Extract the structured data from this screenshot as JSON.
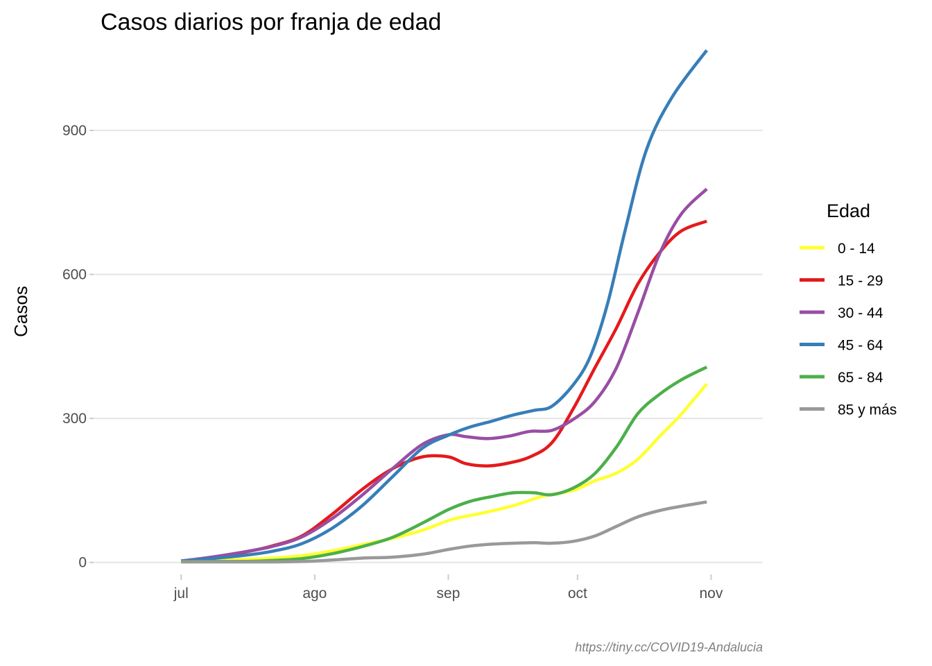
{
  "chart_data": {
    "type": "line",
    "title": "Casos diarios por franja de edad",
    "xlabel": "",
    "ylabel": "Casos",
    "caption": "https://tiny.cc/COVID19-Andalucia",
    "x_axis": {
      "type": "date",
      "domain": [
        "2020-06-11",
        "2020-11-13"
      ],
      "ticks": [
        {
          "date": "2020-07-01",
          "label": "jul"
        },
        {
          "date": "2020-08-01",
          "label": "ago"
        },
        {
          "date": "2020-09-01",
          "label": "sep"
        },
        {
          "date": "2020-10-01",
          "label": "oct"
        },
        {
          "date": "2020-11-01",
          "label": "nov"
        }
      ]
    },
    "y_axis": {
      "ylim": [
        -25,
        1085
      ],
      "ticks": [
        0,
        300,
        600,
        900
      ]
    },
    "grid": "horizontal",
    "legend": {
      "title": "Edad",
      "position": "right"
    },
    "series": [
      {
        "name": "0 - 14",
        "color": "#FFFF33",
        "points": [
          [
            "2020-07-01",
            2
          ],
          [
            "2020-07-08",
            4
          ],
          [
            "2020-07-15",
            6
          ],
          [
            "2020-07-22",
            9
          ],
          [
            "2020-07-29",
            14
          ],
          [
            "2020-08-05",
            24
          ],
          [
            "2020-08-12",
            37
          ],
          [
            "2020-08-19",
            50
          ],
          [
            "2020-08-26",
            67
          ],
          [
            "2020-09-02",
            90
          ],
          [
            "2020-09-09",
            103
          ],
          [
            "2020-09-16",
            118
          ],
          [
            "2020-09-23",
            138
          ],
          [
            "2020-09-30",
            150
          ],
          [
            "2020-10-05",
            170
          ],
          [
            "2020-10-10",
            186
          ],
          [
            "2020-10-15",
            215
          ],
          [
            "2020-10-20",
            262
          ],
          [
            "2020-10-25",
            308
          ],
          [
            "2020-10-31",
            372
          ]
        ]
      },
      {
        "name": "15 - 29",
        "color": "#E41A1C",
        "points": [
          [
            "2020-07-01",
            3
          ],
          [
            "2020-07-08",
            10
          ],
          [
            "2020-07-15",
            20
          ],
          [
            "2020-07-22",
            34
          ],
          [
            "2020-07-29",
            55
          ],
          [
            "2020-08-05",
            100
          ],
          [
            "2020-08-12",
            152
          ],
          [
            "2020-08-19",
            195
          ],
          [
            "2020-08-26",
            220
          ],
          [
            "2020-09-01",
            220
          ],
          [
            "2020-09-05",
            206
          ],
          [
            "2020-09-10",
            201
          ],
          [
            "2020-09-15",
            207
          ],
          [
            "2020-09-20",
            220
          ],
          [
            "2020-09-25",
            249
          ],
          [
            "2020-09-30",
            320
          ],
          [
            "2020-10-05",
            405
          ],
          [
            "2020-10-10",
            488
          ],
          [
            "2020-10-15",
            580
          ],
          [
            "2020-10-20",
            645
          ],
          [
            "2020-10-25",
            690
          ],
          [
            "2020-10-31",
            711
          ]
        ]
      },
      {
        "name": "30 - 44",
        "color": "#984EA3",
        "points": [
          [
            "2020-07-01",
            3
          ],
          [
            "2020-07-08",
            11
          ],
          [
            "2020-07-15",
            21
          ],
          [
            "2020-07-22",
            33
          ],
          [
            "2020-07-29",
            53
          ],
          [
            "2020-08-05",
            91
          ],
          [
            "2020-08-12",
            140
          ],
          [
            "2020-08-19",
            195
          ],
          [
            "2020-08-26",
            246
          ],
          [
            "2020-09-01",
            266
          ],
          [
            "2020-09-05",
            262
          ],
          [
            "2020-09-10",
            258
          ],
          [
            "2020-09-15",
            263
          ],
          [
            "2020-09-20",
            273
          ],
          [
            "2020-09-25",
            275
          ],
          [
            "2020-09-30",
            298
          ],
          [
            "2020-10-05",
            335
          ],
          [
            "2020-10-10",
            405
          ],
          [
            "2020-10-15",
            520
          ],
          [
            "2020-10-20",
            642
          ],
          [
            "2020-10-25",
            725
          ],
          [
            "2020-10-31",
            778
          ]
        ]
      },
      {
        "name": "45 - 64",
        "color": "#377EB8",
        "points": [
          [
            "2020-07-01",
            3
          ],
          [
            "2020-07-08",
            8
          ],
          [
            "2020-07-15",
            14
          ],
          [
            "2020-07-22",
            23
          ],
          [
            "2020-07-29",
            39
          ],
          [
            "2020-08-05",
            71
          ],
          [
            "2020-08-12",
            118
          ],
          [
            "2020-08-19",
            178
          ],
          [
            "2020-08-26",
            238
          ],
          [
            "2020-09-01",
            265
          ],
          [
            "2020-09-06",
            282
          ],
          [
            "2020-09-11",
            294
          ],
          [
            "2020-09-16",
            307
          ],
          [
            "2020-09-21",
            317
          ],
          [
            "2020-09-25",
            325
          ],
          [
            "2020-09-30",
            370
          ],
          [
            "2020-10-04",
            430
          ],
          [
            "2020-10-08",
            540
          ],
          [
            "2020-10-12",
            690
          ],
          [
            "2020-10-17",
            860
          ],
          [
            "2020-10-23",
            970
          ],
          [
            "2020-10-31",
            1067
          ]
        ]
      },
      {
        "name": "65 - 84",
        "color": "#4DAF4A",
        "points": [
          [
            "2020-07-01",
            2
          ],
          [
            "2020-07-08",
            2
          ],
          [
            "2020-07-15",
            2
          ],
          [
            "2020-07-22",
            4
          ],
          [
            "2020-07-29",
            8
          ],
          [
            "2020-08-05",
            18
          ],
          [
            "2020-08-12",
            33
          ],
          [
            "2020-08-19",
            52
          ],
          [
            "2020-08-26",
            82
          ],
          [
            "2020-09-01",
            110
          ],
          [
            "2020-09-06",
            127
          ],
          [
            "2020-09-11",
            137
          ],
          [
            "2020-09-16",
            145
          ],
          [
            "2020-09-21",
            145
          ],
          [
            "2020-09-25",
            141
          ],
          [
            "2020-09-30",
            155
          ],
          [
            "2020-10-05",
            185
          ],
          [
            "2020-10-10",
            240
          ],
          [
            "2020-10-15",
            310
          ],
          [
            "2020-10-20",
            350
          ],
          [
            "2020-10-25",
            380
          ],
          [
            "2020-10-31",
            407
          ]
        ]
      },
      {
        "name": "85 y más",
        "color": "#999999",
        "points": [
          [
            "2020-07-01",
            1
          ],
          [
            "2020-07-08",
            1
          ],
          [
            "2020-07-15",
            1
          ],
          [
            "2020-07-22",
            1
          ],
          [
            "2020-07-29",
            2
          ],
          [
            "2020-08-05",
            5
          ],
          [
            "2020-08-12",
            9
          ],
          [
            "2020-08-19",
            11
          ],
          [
            "2020-08-26",
            17
          ],
          [
            "2020-09-01",
            27
          ],
          [
            "2020-09-06",
            34
          ],
          [
            "2020-09-11",
            38
          ],
          [
            "2020-09-16",
            40
          ],
          [
            "2020-09-21",
            41
          ],
          [
            "2020-09-25",
            40
          ],
          [
            "2020-09-30",
            44
          ],
          [
            "2020-10-05",
            55
          ],
          [
            "2020-10-10",
            75
          ],
          [
            "2020-10-15",
            95
          ],
          [
            "2020-10-20",
            108
          ],
          [
            "2020-10-25",
            117
          ],
          [
            "2020-10-31",
            126
          ]
        ]
      }
    ]
  }
}
